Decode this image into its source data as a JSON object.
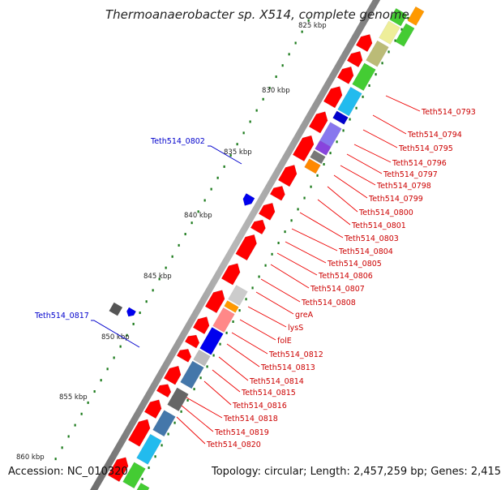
{
  "map": {
    "title": "Thermoanaerobacter sp. X514, complete genome",
    "accession": "Accession: NC_010320",
    "summary": "Topology: circular; Length: 2,457,259 bp; Genes: 2,415"
  },
  "ruler": [
    {
      "label": "825 kbp"
    },
    {
      "label": "830 kbp"
    },
    {
      "label": "835 kbp"
    },
    {
      "label": "840 kbp"
    },
    {
      "label": "845 kbp"
    },
    {
      "label": "850 kbp"
    },
    {
      "label": "855 kbp"
    },
    {
      "label": "860 kbp"
    }
  ],
  "left_labels": [
    {
      "label": "Teth514_0802"
    },
    {
      "label": "Teth514_0817"
    }
  ],
  "right_labels": [
    {
      "label": "Teth514_0793"
    },
    {
      "label": "Teth514_0794"
    },
    {
      "label": "Teth514_0795"
    },
    {
      "label": "Teth514_0796"
    },
    {
      "label": "Teth514_0797"
    },
    {
      "label": "Teth514_0798"
    },
    {
      "label": "Teth514_0799"
    },
    {
      "label": "Teth514_0800"
    },
    {
      "label": "Teth514_0801"
    },
    {
      "label": "Teth514_0803"
    },
    {
      "label": "Teth514_0804"
    },
    {
      "label": "Teth514_0805"
    },
    {
      "label": "Teth514_0806"
    },
    {
      "label": "Teth514_0807"
    },
    {
      "label": "Teth514_0808"
    },
    {
      "label": "greA"
    },
    {
      "label": "lysS"
    },
    {
      "label": "folE"
    },
    {
      "label": "Teth514_0812"
    },
    {
      "label": "Teth514_0813"
    },
    {
      "label": "Teth514_0814"
    },
    {
      "label": "Teth514_0815"
    },
    {
      "label": "Teth514_0816"
    },
    {
      "label": "Teth514_0818"
    },
    {
      "label": "Teth514_0819"
    },
    {
      "label": "Teth514_0820"
    }
  ],
  "colors": {
    "cds_forward": "#ff0000",
    "cds_reverse_label": "#0000cc",
    "backbone": "#9a9a9a",
    "ruler_dots": "#1a7a1a",
    "label_line": "#ee0000"
  }
}
